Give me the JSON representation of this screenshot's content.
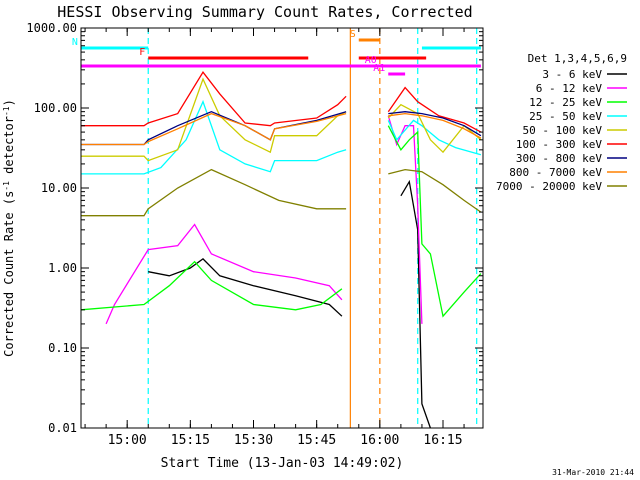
{
  "chart_data": {
    "type": "line",
    "title": "HESSI Observing Summary Count Rates, Corrected",
    "xlabel": "Start Time (13-Jan-03 14:49:02)",
    "ylabel": "Corrected Count Rate (s⁻¹ detector⁻¹)",
    "ylabel_parts": [
      "Corrected Count Rate (s",
      "-1",
      " detector",
      "-1",
      ")"
    ],
    "ylim": [
      0.01,
      1000
    ],
    "yscale": "log",
    "xlim": [
      "14:49:02",
      "16:24:30"
    ],
    "x_ticks": [
      "15:00",
      "15:15",
      "15:30",
      "15:45",
      "16:00",
      "16:15"
    ],
    "y_ticks": [
      "0.01",
      "0.10",
      "1.00",
      "10.00",
      "100.00",
      "1000.00"
    ],
    "legend_title": "Det 1,3,4,5,6,9",
    "legend_placement": "right",
    "timestamp": "31-Mar-2010 21:44",
    "flags": [
      {
        "label": "N",
        "color": "#00ffff",
        "segments": [
          [
            "14:49",
            "15:05"
          ],
          [
            "16:10",
            "16:24"
          ]
        ]
      },
      {
        "label": "F",
        "color": "#ff0000",
        "segments": [
          [
            "15:05",
            "15:43"
          ],
          [
            "15:55",
            "16:11"
          ]
        ]
      },
      {
        "label": "S",
        "color": "#ff8000",
        "segments": [
          [
            "15:55",
            "16:00"
          ]
        ]
      },
      {
        "label": "",
        "color": "#ff00ff",
        "segments": [
          [
            "14:49",
            "16:24"
          ]
        ]
      },
      {
        "label": "A0",
        "color": "#ff00ff",
        "segments": [
          [
            "16:00",
            "16:08"
          ]
        ]
      },
      {
        "label": "A1",
        "color": "#ff00ff",
        "segments": [
          [
            "16:02",
            "16:06"
          ]
        ]
      }
    ],
    "vlines": [
      {
        "time": "15:05",
        "color": "#00ffff",
        "style": "dashed"
      },
      {
        "time": "15:53",
        "color": "#ff8000",
        "style": "solid"
      },
      {
        "time": "16:00",
        "color": "#ff8000",
        "style": "dashed"
      },
      {
        "time": "16:09",
        "color": "#00ffff",
        "style": "dashed"
      },
      {
        "time": "16:23",
        "color": "#00ffff",
        "style": "dashed"
      }
    ],
    "series": [
      {
        "name": "3 - 6 keV",
        "color": "#000000",
        "points": [
          [
            "15:05",
            0.9
          ],
          [
            "15:10",
            0.8
          ],
          [
            "15:15",
            1.0
          ],
          [
            "15:18",
            1.3
          ],
          [
            "15:22",
            0.8
          ],
          [
            "15:30",
            0.6
          ],
          [
            "15:40",
            0.45
          ],
          [
            "15:48",
            0.35
          ],
          [
            "15:51",
            0.25
          ],
          [
            "16:00",
            null
          ],
          [
            "16:05",
            8
          ],
          [
            "16:07",
            12
          ],
          [
            "16:09",
            3
          ],
          [
            "16:10",
            0.02
          ],
          [
            "16:12",
            0.01
          ]
        ]
      },
      {
        "name": "6 - 12 keV",
        "color": "#ff00ff",
        "points": [
          [
            "14:55",
            0.2
          ],
          [
            "14:57",
            0.35
          ],
          [
            "15:05",
            1.7
          ],
          [
            "15:12",
            1.9
          ],
          [
            "15:16",
            3.5
          ],
          [
            "15:20",
            1.5
          ],
          [
            "15:30",
            0.9
          ],
          [
            "15:40",
            0.75
          ],
          [
            "15:48",
            0.6
          ],
          [
            "15:51",
            0.4
          ],
          [
            "16:00",
            null
          ],
          [
            "16:02",
            80
          ],
          [
            "16:04",
            35
          ],
          [
            "16:06",
            60
          ],
          [
            "16:08",
            60
          ],
          [
            "16:09",
            6
          ],
          [
            "16:10",
            0.2
          ]
        ]
      },
      {
        "name": "12 - 25 keV",
        "color": "#00ff00",
        "points": [
          [
            "14:49",
            0.3
          ],
          [
            "15:04",
            0.35
          ],
          [
            "15:10",
            0.6
          ],
          [
            "15:16",
            1.2
          ],
          [
            "15:20",
            0.7
          ],
          [
            "15:30",
            0.35
          ],
          [
            "15:40",
            0.3
          ],
          [
            "15:46",
            0.35
          ],
          [
            "15:51",
            0.55
          ],
          [
            "16:00",
            null
          ],
          [
            "16:02",
            60
          ],
          [
            "16:05",
            30
          ],
          [
            "16:07",
            40
          ],
          [
            "16:09",
            50
          ],
          [
            "16:10",
            2
          ],
          [
            "16:12",
            1.5
          ],
          [
            "16:15",
            0.25
          ],
          [
            "16:20",
            0.5
          ],
          [
            "16:24",
            0.85
          ]
        ]
      },
      {
        "name": "25 - 50 keV",
        "color": "#00ffff",
        "points": [
          [
            "14:49",
            15
          ],
          [
            "15:04",
            15
          ],
          [
            "15:08",
            18
          ],
          [
            "15:14",
            40
          ],
          [
            "15:18",
            120
          ],
          [
            "15:22",
            30
          ],
          [
            "15:28",
            20
          ],
          [
            "15:34",
            16
          ],
          [
            "15:35",
            22
          ],
          [
            "15:45",
            22
          ],
          [
            "15:50",
            28
          ],
          [
            "15:52",
            30
          ],
          [
            "16:00",
            null
          ],
          [
            "16:02",
            70
          ],
          [
            "16:04",
            40
          ],
          [
            "16:08",
            70
          ],
          [
            "16:10",
            60
          ],
          [
            "16:14",
            40
          ],
          [
            "16:18",
            32
          ],
          [
            "16:24",
            26
          ]
        ]
      },
      {
        "name": "50 - 100 keV",
        "color": "#cccc00",
        "points": [
          [
            "14:49",
            25
          ],
          [
            "15:04",
            25
          ],
          [
            "15:05",
            22
          ],
          [
            "15:12",
            30
          ],
          [
            "15:18",
            230
          ],
          [
            "15:22",
            80
          ],
          [
            "15:28",
            40
          ],
          [
            "15:34",
            28
          ],
          [
            "15:35",
            45
          ],
          [
            "15:45",
            45
          ],
          [
            "15:50",
            80
          ],
          [
            "15:52",
            90
          ],
          [
            "16:00",
            null
          ],
          [
            "16:02",
            75
          ],
          [
            "16:05",
            110
          ],
          [
            "16:09",
            85
          ],
          [
            "16:12",
            40
          ],
          [
            "16:15",
            28
          ],
          [
            "16:20",
            60
          ],
          [
            "16:24",
            40
          ]
        ]
      },
      {
        "name": "100 - 300 keV",
        "color": "#ff0000",
        "points": [
          [
            "14:49",
            60
          ],
          [
            "15:04",
            60
          ],
          [
            "15:05",
            65
          ],
          [
            "15:12",
            85
          ],
          [
            "15:18",
            280
          ],
          [
            "15:22",
            150
          ],
          [
            "15:28",
            65
          ],
          [
            "15:34",
            60
          ],
          [
            "15:35",
            65
          ],
          [
            "15:45",
            75
          ],
          [
            "15:50",
            110
          ],
          [
            "15:52",
            140
          ],
          [
            "16:00",
            null
          ],
          [
            "16:02",
            90
          ],
          [
            "16:06",
            180
          ],
          [
            "16:09",
            120
          ],
          [
            "16:14",
            80
          ],
          [
            "16:20",
            65
          ],
          [
            "16:24",
            50
          ]
        ]
      },
      {
        "name": "300 - 800 keV",
        "color": "#000080",
        "points": [
          [
            "14:49",
            35
          ],
          [
            "15:04",
            35
          ],
          [
            "15:05",
            40
          ],
          [
            "15:12",
            60
          ],
          [
            "15:20",
            90
          ],
          [
            "15:28",
            60
          ],
          [
            "15:34",
            40
          ],
          [
            "15:35",
            55
          ],
          [
            "15:45",
            70
          ],
          [
            "15:52",
            90
          ],
          [
            "16:00",
            null
          ],
          [
            "16:02",
            85
          ],
          [
            "16:06",
            90
          ],
          [
            "16:10",
            85
          ],
          [
            "16:15",
            75
          ],
          [
            "16:20",
            60
          ],
          [
            "16:24",
            45
          ]
        ]
      },
      {
        "name": "800 - 7000 keV",
        "color": "#ff8000",
        "points": [
          [
            "14:49",
            35
          ],
          [
            "15:04",
            35
          ],
          [
            "15:05",
            38
          ],
          [
            "15:12",
            55
          ],
          [
            "15:20",
            85
          ],
          [
            "15:28",
            60
          ],
          [
            "15:34",
            40
          ],
          [
            "15:35",
            55
          ],
          [
            "15:45",
            68
          ],
          [
            "15:52",
            85
          ],
          [
            "16:00",
            null
          ],
          [
            "16:02",
            80
          ],
          [
            "16:06",
            85
          ],
          [
            "16:10",
            80
          ],
          [
            "16:15",
            70
          ],
          [
            "16:20",
            55
          ],
          [
            "16:24",
            42
          ]
        ]
      },
      {
        "name": "7000 - 20000 keV",
        "color": "#808000",
        "points": [
          [
            "14:49",
            4.5
          ],
          [
            "15:04",
            4.5
          ],
          [
            "15:05",
            5.5
          ],
          [
            "15:12",
            10
          ],
          [
            "15:20",
            17
          ],
          [
            "15:28",
            11
          ],
          [
            "15:36",
            7
          ],
          [
            "15:45",
            5.5
          ],
          [
            "15:52",
            5.5
          ],
          [
            "16:00",
            null
          ],
          [
            "16:02",
            15
          ],
          [
            "16:06",
            17
          ],
          [
            "16:10",
            16
          ],
          [
            "16:15",
            11
          ],
          [
            "16:20",
            7
          ],
          [
            "16:24",
            5
          ]
        ]
      }
    ]
  }
}
